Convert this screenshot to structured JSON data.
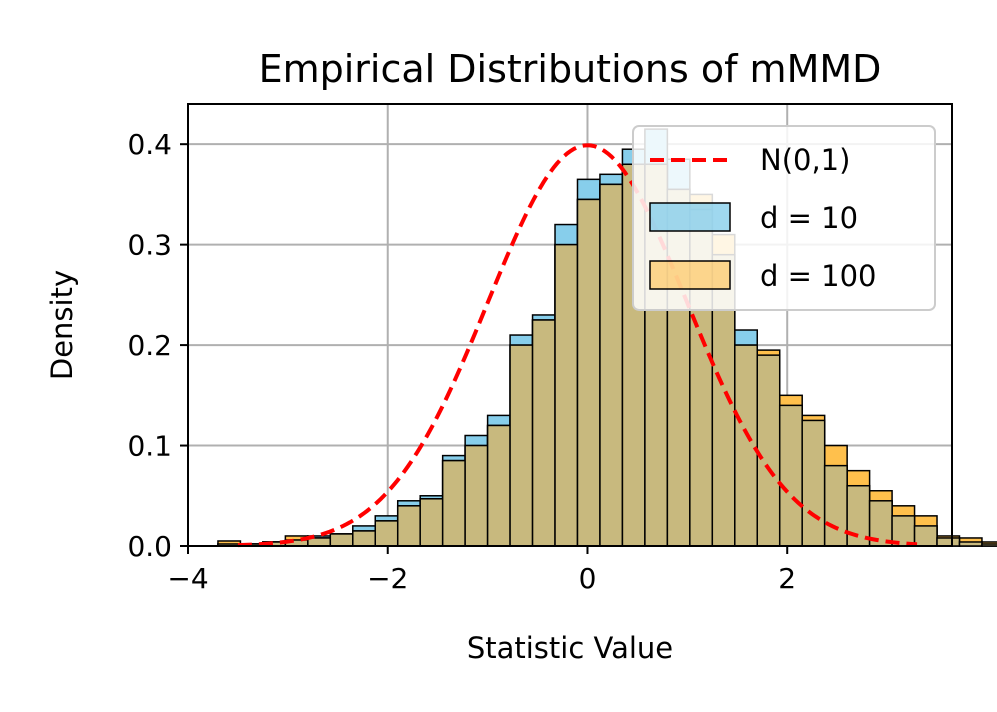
{
  "chart_data": {
    "type": "histogram",
    "title": "Empirical Distributions of mMMD",
    "xlabel": "Statistic Value",
    "ylabel": "Density",
    "xlim": [
      -4,
      3.65
    ],
    "ylim": [
      0,
      0.44
    ],
    "xticks": [
      -4,
      -2,
      0,
      2
    ],
    "xtick_labels": [
      "−4",
      "−2",
      "0",
      "2"
    ],
    "yticks": [
      0.0,
      0.1,
      0.2,
      0.3,
      0.4
    ],
    "ytick_labels": [
      "0.0",
      "0.1",
      "0.2",
      "0.3",
      "0.4"
    ],
    "grid": true,
    "legend_position": "upper right",
    "legend": [
      "N(0,1)",
      "d = 10",
      "d = 100"
    ],
    "colors": {
      "d10_fill": "#87CEEB",
      "d100_fill": "#FFC04C",
      "overlap_fill": "#C8B97E",
      "bar_edge": "#000000",
      "normal_line": "#FF0000"
    },
    "series": [
      {
        "name": "d = 10",
        "bin_start": -3.7,
        "bin_width": 0.225,
        "values": [
          0.002,
          0.002,
          0.004,
          0.006,
          0.01,
          0.012,
          0.02,
          0.03,
          0.045,
          0.05,
          0.09,
          0.11,
          0.13,
          0.21,
          0.23,
          0.32,
          0.365,
          0.37,
          0.395,
          0.415,
          0.385,
          0.335,
          0.29,
          0.215,
          0.19,
          0.14,
          0.125,
          0.08,
          0.06,
          0.045,
          0.03,
          0.02,
          0.008,
          0.004,
          0.002,
          0.001
        ]
      },
      {
        "name": "d = 100",
        "bin_start": -3.7,
        "bin_width": 0.225,
        "values": [
          0.005,
          0.002,
          0.004,
          0.01,
          0.008,
          0.012,
          0.015,
          0.025,
          0.04,
          0.047,
          0.085,
          0.1,
          0.12,
          0.2,
          0.225,
          0.3,
          0.345,
          0.36,
          0.38,
          0.38,
          0.355,
          0.35,
          0.31,
          0.2,
          0.195,
          0.15,
          0.13,
          0.1,
          0.075,
          0.055,
          0.04,
          0.03,
          0.01,
          0.008,
          0.004,
          0.002
        ]
      },
      {
        "name": "N(0,1)",
        "kind": "normal_pdf",
        "mean": 0,
        "std": 1,
        "x_range": [
          -3.5,
          3.3
        ]
      }
    ]
  }
}
